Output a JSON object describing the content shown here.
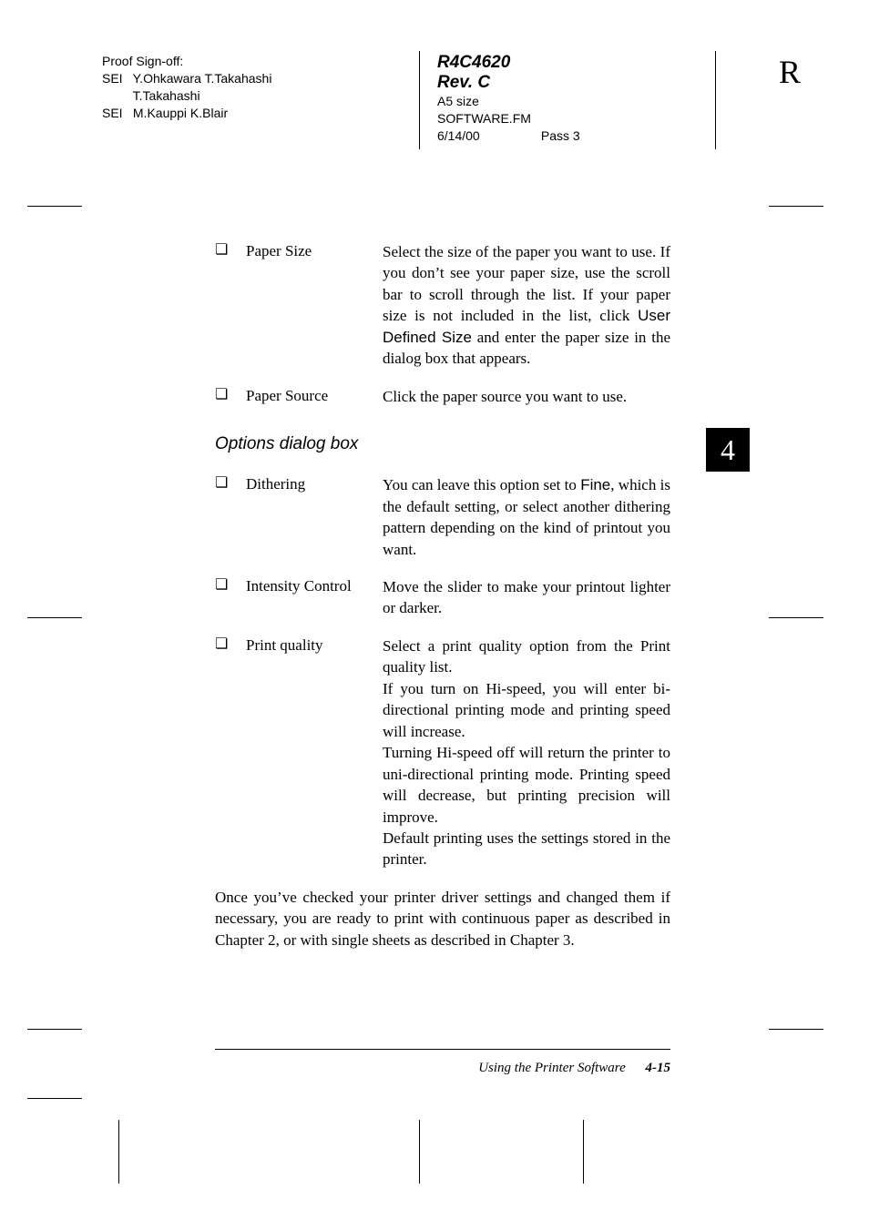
{
  "header": {
    "proof_signoff": "Proof Sign-off:",
    "line1_prefix": "SEI",
    "line1_names": "Y.Ohkawara T.Takahashi",
    "line2_names": "T.Takahashi",
    "line3_prefix": "SEI",
    "line3_names": "M.Kauppi K.Blair",
    "doc_code": "R4C4620",
    "rev": "Rev. C",
    "size_label": "A5 size",
    "filename": "SOFTWARE.FM",
    "date": "6/14/00",
    "pass": "Pass 3",
    "big_letter": "R"
  },
  "chapter_tab": "4",
  "items_top": [
    {
      "label": "Paper Size",
      "desc_parts": [
        {
          "t": "Select the size of the paper you want to use. If you don’t see your paper size, use the scroll bar to scroll through the list. If your paper size is not included in the list, click "
        },
        {
          "t": "User Defined Size",
          "sans": true
        },
        {
          "t": " and enter the paper size in the dialog box that appears."
        }
      ]
    },
    {
      "label": "Paper Source",
      "desc_parts": [
        {
          "t": "Click the paper source you want to use."
        }
      ]
    }
  ],
  "section_title": "Options dialog box",
  "items_options": [
    {
      "label": "Dithering",
      "desc_parts": [
        {
          "t": "You can leave this option set to "
        },
        {
          "t": "Fine",
          "sans": true
        },
        {
          "t": ", which is the default setting, or select another dithering pattern depending on the kind of printout you want."
        }
      ]
    },
    {
      "label": "Intensity Control",
      "desc_parts": [
        {
          "t": "Move the slider to make your printout lighter or darker."
        }
      ]
    },
    {
      "label": "Print quality",
      "desc_parts": [
        {
          "t": "Select a print quality option from the Print quality list."
        },
        {
          "br": true
        },
        {
          "t": "If you turn on Hi-speed, you will enter bi-directional printing mode and printing speed will increase."
        },
        {
          "br": true
        },
        {
          "t": "Turning Hi-speed off will return the printer to uni-directional printing mode. Printing speed will decrease, but printing precision will improve."
        },
        {
          "br": true
        },
        {
          "t": "Default printing uses the settings stored in the printer."
        }
      ]
    }
  ],
  "closing": "Once you’ve checked your printer driver settings and changed them if necessary, you are ready to print with continuous paper as described in Chapter 2, or with single sheets as described in Chapter 3.",
  "footer": {
    "title": "Using the Printer Software",
    "page": "4-15"
  },
  "style": {
    "bg": "#ffffff",
    "text": "#000000"
  }
}
